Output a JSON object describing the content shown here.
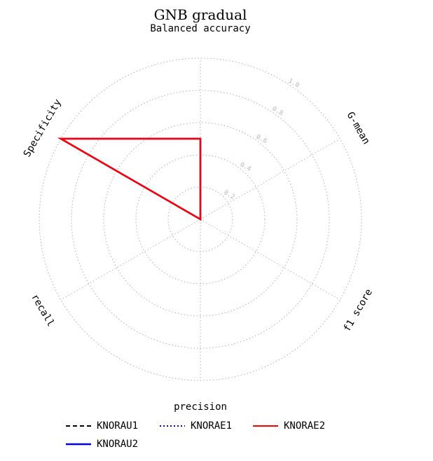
{
  "chart_data": {
    "type": "radar",
    "title": "GNB gradual",
    "subtitle": "Balanced accuracy",
    "axes": [
      "Balanced accuracy",
      "G-mean",
      "f1 score",
      "precision",
      "recall",
      "Specificity"
    ],
    "rticks": [
      "0.2",
      "0.4",
      "0.6",
      "0.8",
      "1.0"
    ],
    "rlim": [
      0,
      1
    ],
    "grid": true,
    "legend_placement": "bottom",
    "series": [
      {
        "name": "KNORAU1",
        "color": "#000000",
        "style": "dashed",
        "values": [
          0.5,
          0.0,
          0.0,
          0.0,
          0.0,
          1.0
        ]
      },
      {
        "name": "KNORAU2",
        "color": "#0000ff",
        "style": "solid",
        "values": [
          0.5,
          0.0,
          0.0,
          0.0,
          0.0,
          1.0
        ]
      },
      {
        "name": "KNORAE1",
        "color": "#0000ff",
        "style": "dotted",
        "values": [
          0.5,
          0.0,
          0.0,
          0.0,
          0.0,
          1.0
        ]
      },
      {
        "name": "KNORAE2",
        "color": "#ff0000",
        "style": "solid",
        "values": [
          0.5,
          0.0,
          0.0,
          0.0,
          0.0,
          1.0
        ]
      }
    ]
  }
}
